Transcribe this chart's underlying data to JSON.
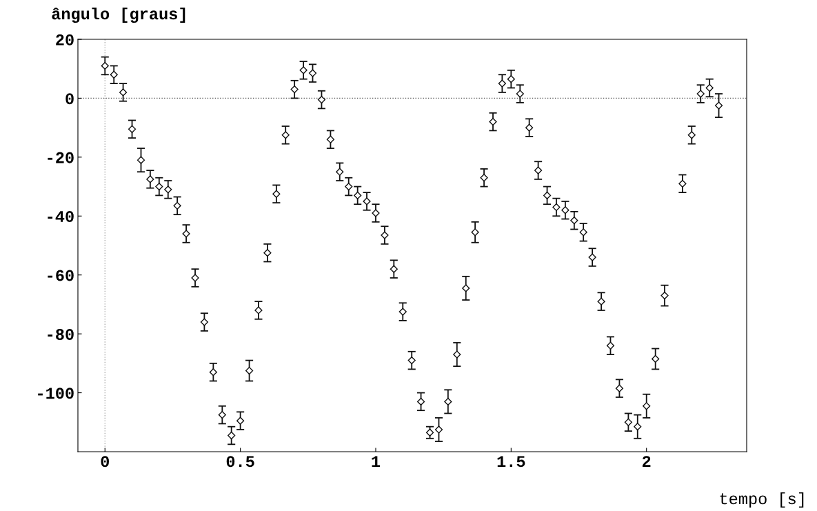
{
  "chart_data": {
    "type": "scatter",
    "xlabel": "tempo [s]",
    "ylabel": "ângulo [graus]",
    "xlim": [
      -0.1,
      2.37
    ],
    "ylim": [
      -120,
      20
    ],
    "xticks": [
      0,
      0.5,
      1,
      1.5,
      2
    ],
    "yticks": [
      -100,
      -80,
      -60,
      -40,
      -20,
      0,
      20
    ],
    "grid": false,
    "marker": "diamond",
    "ref_lines": [
      {
        "axis": "x",
        "value": 0,
        "line_style": "dotted",
        "color": "#aaaaaa"
      },
      {
        "axis": "y",
        "value": 0,
        "line_style": "dotted",
        "color": "#555555"
      }
    ],
    "series": [
      {
        "color": "#111111",
        "x": [
          0,
          0.033,
          0.067,
          0.1,
          0.133,
          0.167,
          0.2,
          0.233,
          0.267,
          0.3,
          0.333,
          0.367,
          0.4,
          0.433,
          0.467,
          0.5,
          0.533,
          0.567,
          0.6,
          0.633,
          0.667,
          0.7,
          0.733,
          0.767,
          0.8,
          0.833,
          0.867,
          0.9,
          0.933,
          0.967,
          1.0,
          1.033,
          1.067,
          1.1,
          1.133,
          1.167,
          1.2,
          1.233,
          1.267,
          1.3,
          1.333,
          1.367,
          1.4,
          1.433,
          1.467,
          1.5,
          1.533,
          1.567,
          1.6,
          1.633,
          1.667,
          1.7,
          1.733,
          1.767,
          1.8,
          1.833,
          1.867,
          1.9,
          1.933,
          1.967,
          2.0,
          2.033,
          2.067,
          2.133,
          2.167,
          2.2,
          2.233,
          2.267
        ],
        "values": [
          11,
          8,
          2,
          -10.5,
          -21,
          -27.5,
          -30,
          -31,
          -36.5,
          -46,
          -61,
          -76,
          -93,
          -107.5,
          -114.5,
          -109.5,
          -92.5,
          -72,
          -52.5,
          -32.5,
          -12.5,
          3,
          9.5,
          8.5,
          -0.5,
          -14,
          -25,
          -30,
          -33,
          -35,
          -39,
          -46.5,
          -58,
          -72.5,
          -89,
          -103,
          -113.5,
          -112.5,
          -103,
          -87,
          -64.5,
          -45.5,
          -27,
          -8,
          5,
          6.5,
          1.5,
          -10,
          -24.5,
          -33,
          -37,
          -38,
          -41.5,
          -45.5,
          -54,
          -69,
          -84,
          -98.5,
          -110,
          -111.5,
          -104.5,
          -88.5,
          -67,
          -29,
          -12.5,
          1.5,
          3.5,
          -2.5
        ],
        "errors": [
          3,
          3,
          3,
          3,
          4,
          3,
          3,
          3,
          3,
          3,
          3,
          3,
          3,
          3,
          3,
          3,
          3.5,
          3,
          3,
          3,
          3,
          3,
          3,
          3,
          3,
          3,
          3,
          3,
          3,
          3,
          3,
          3,
          3,
          3,
          3,
          3,
          2,
          4,
          4,
          4,
          4,
          3.5,
          3,
          3,
          3,
          3,
          3,
          3,
          3,
          3,
          3,
          3,
          3,
          3,
          3,
          3,
          3,
          3,
          3,
          4,
          4,
          3.5,
          3.5,
          3,
          3,
          3,
          3,
          4
        ]
      }
    ]
  }
}
